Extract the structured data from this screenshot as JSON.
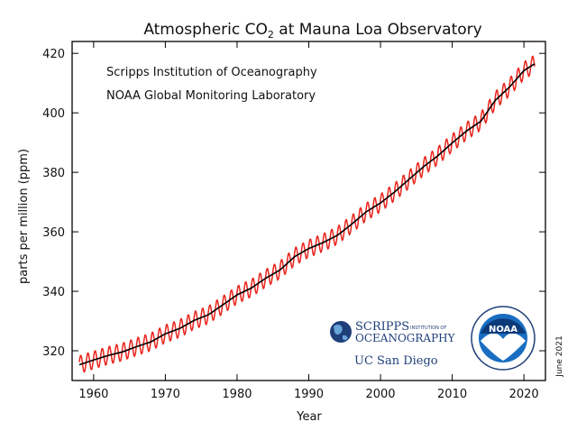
{
  "chart_data": {
    "type": "line",
    "title_main": "Atmospheric CO",
    "title_sub": "2",
    "title_rest": " at Mauna Loa Observatory",
    "xlabel": "Year",
    "ylabel": "parts per million (ppm)",
    "xlim": [
      1957,
      2023
    ],
    "ylim": [
      310,
      424
    ],
    "xticks": [
      1960,
      1970,
      1980,
      1990,
      2000,
      2010,
      2020
    ],
    "yticks": [
      320,
      340,
      360,
      380,
      400,
      420
    ],
    "annotations": [
      "Scripps Institution of Oceanography",
      "NOAA Global Monitoring Laboratory"
    ],
    "date_note": "June 2021",
    "series": [
      {
        "role": "monthly",
        "color": "#e8241c",
        "seasonal_amplitude_ppm": 3.0
      },
      {
        "role": "annual trend",
        "color": "#000000",
        "x": [
          1958,
          1960,
          1962,
          1964,
          1966,
          1968,
          1970,
          1972,
          1974,
          1976,
          1978,
          1980,
          1982,
          1984,
          1986,
          1988,
          1990,
          1992,
          1994,
          1996,
          1998,
          2000,
          2002,
          2004,
          2006,
          2008,
          2010,
          2012,
          2014,
          2016,
          2018,
          2020,
          2021.5
        ],
        "values": [
          315.3,
          316.9,
          318.4,
          319.6,
          321.4,
          323.0,
          325.7,
          327.5,
          330.2,
          332.1,
          335.4,
          338.8,
          341.1,
          344.4,
          347.2,
          351.6,
          354.4,
          356.4,
          358.8,
          362.6,
          366.7,
          369.7,
          373.5,
          377.7,
          381.9,
          385.6,
          389.9,
          393.9,
          397.2,
          404.2,
          408.7,
          414.2,
          416.5
        ]
      }
    ]
  },
  "logos": {
    "scripps_line1": "SCRIPPS",
    "scripps_line1_small": "INSTITUTION OF",
    "scripps_line2": "OCEANOGRAPHY",
    "ucsd": "UC San Diego",
    "noaa": "NOAA"
  },
  "colors": {
    "monthly": "#e8241c",
    "trend": "#000000",
    "scripps_blue": "#1f3f7a",
    "noaa_blue": "#1a6ec2"
  }
}
